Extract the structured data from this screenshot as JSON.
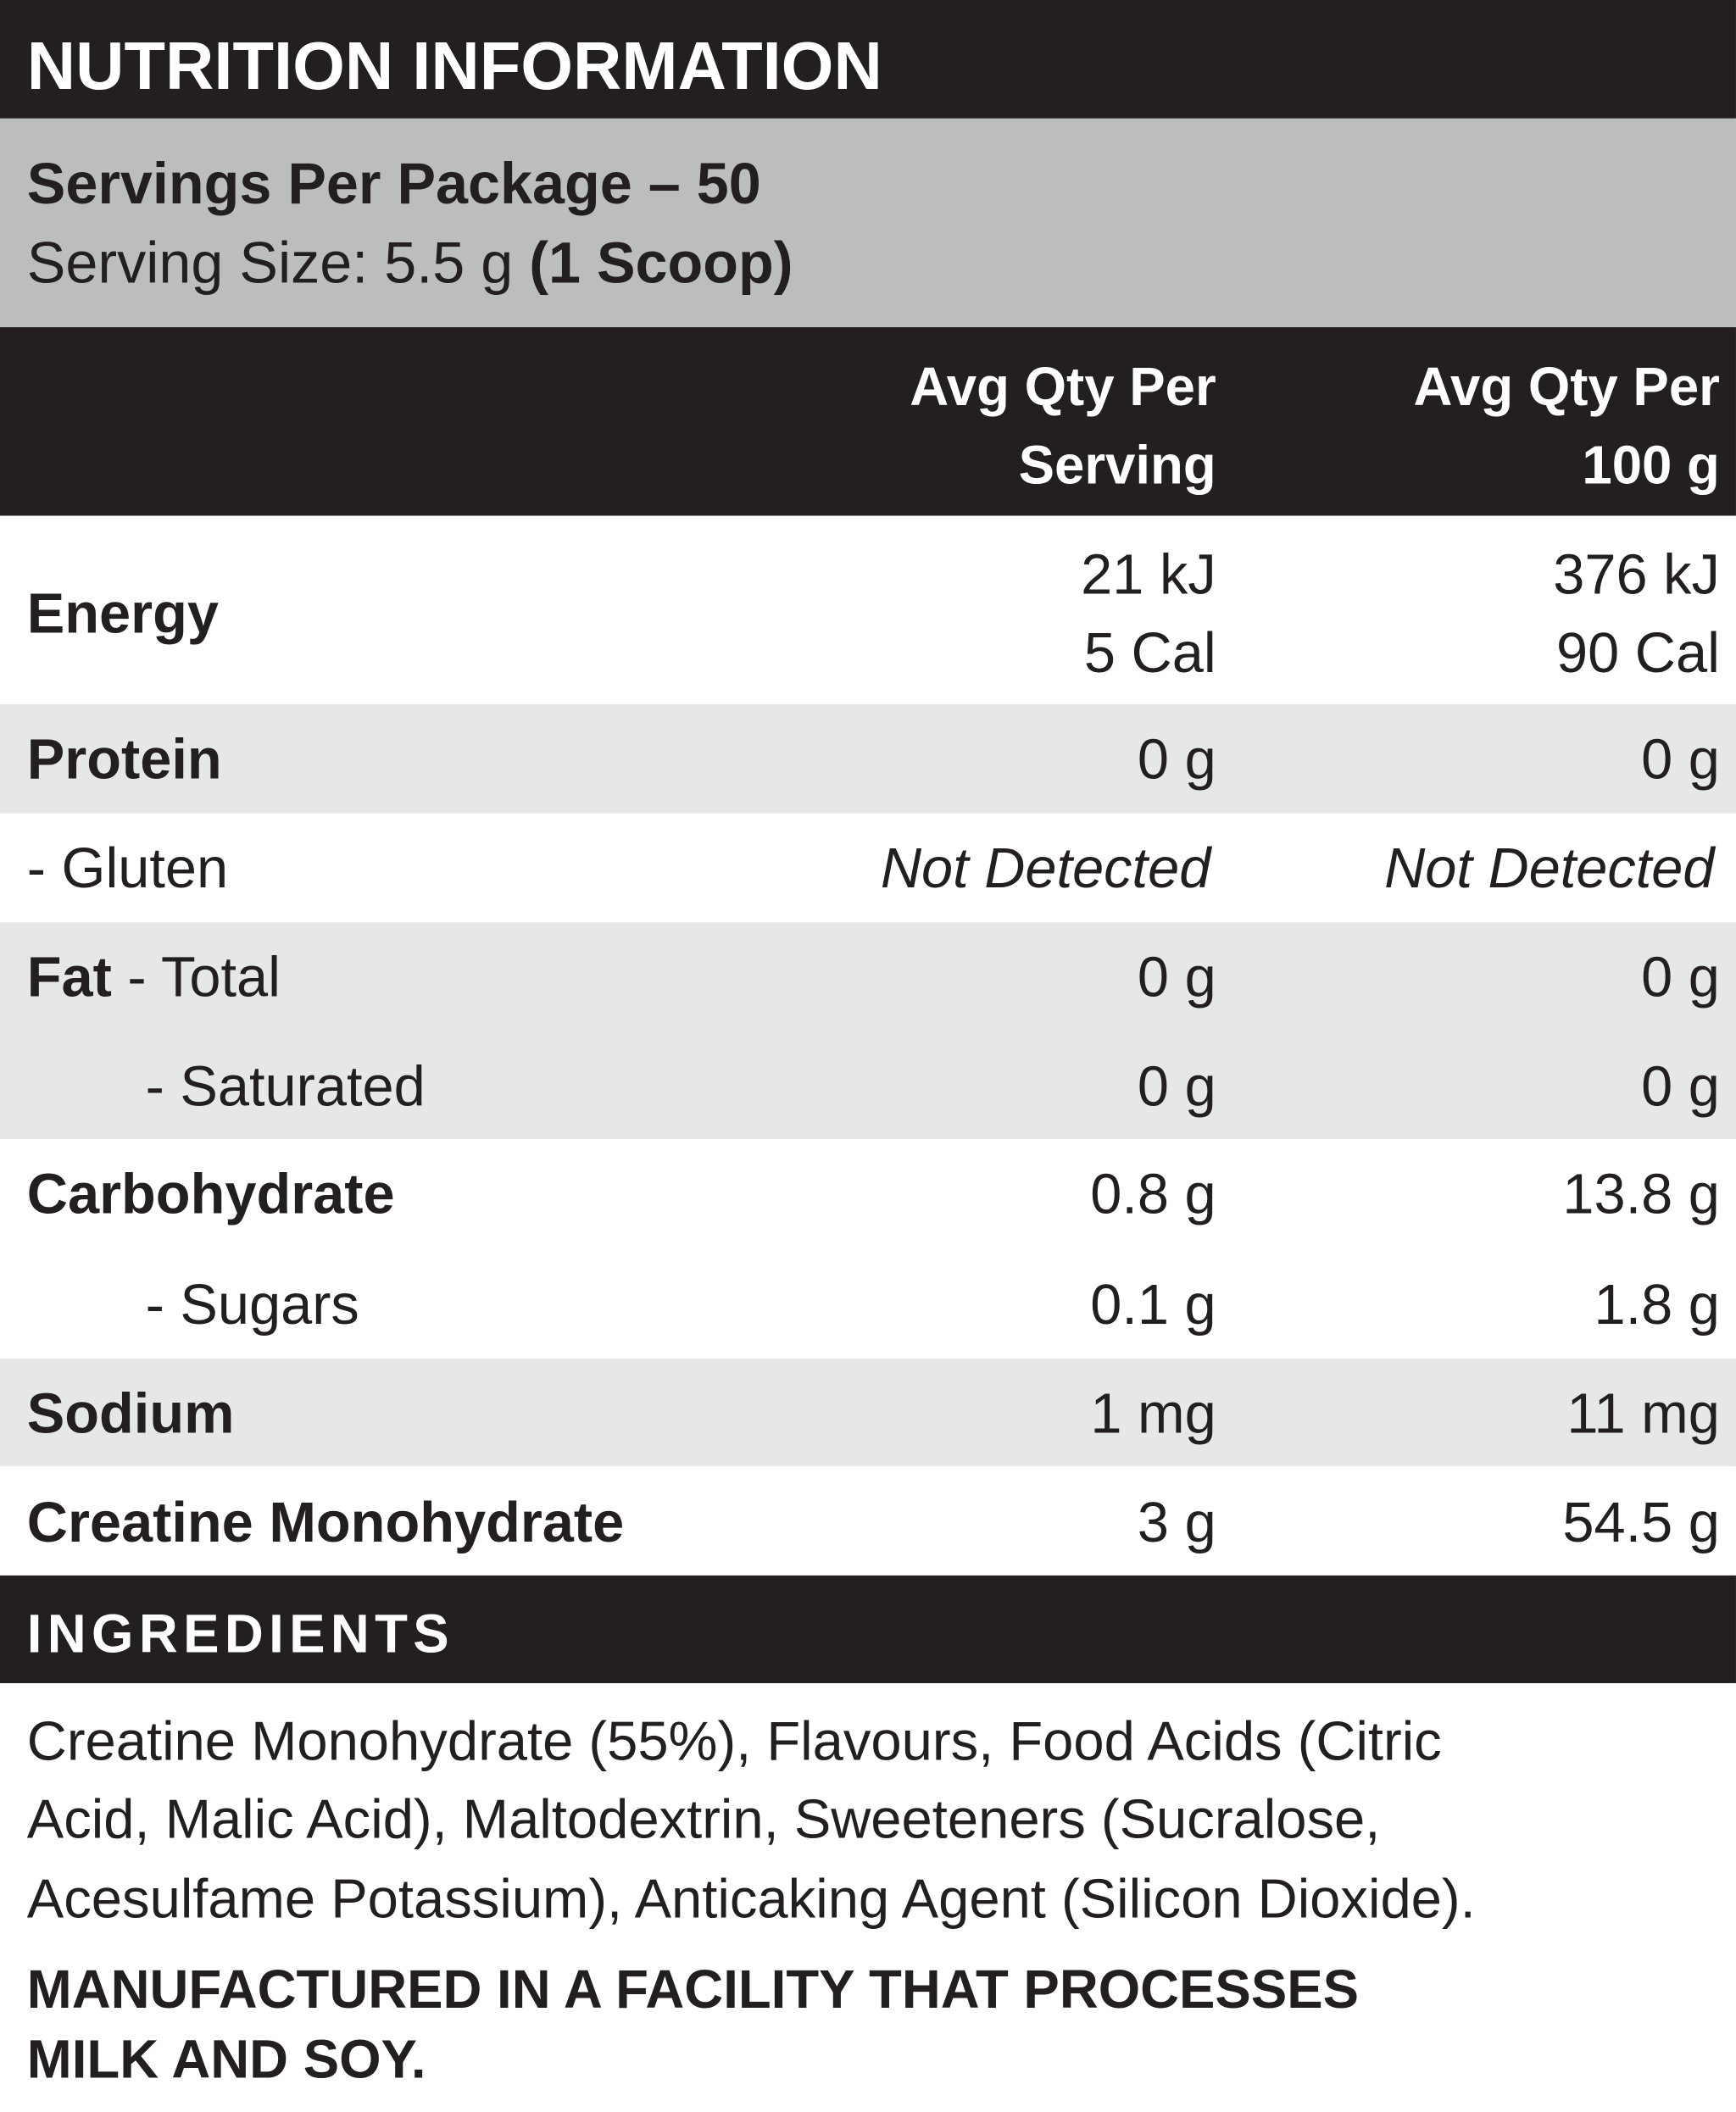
{
  "title": "NUTRITION INFORMATION",
  "servings": {
    "per_package": "Servings Per Package – 50",
    "size": "Serving Size: 5.5 g",
    "size_note": "(1 Scoop)"
  },
  "table": {
    "columns": [
      [
        "Avg Qty Per",
        "Serving"
      ],
      [
        "Avg Qty Per",
        "100 g"
      ]
    ],
    "rows": [
      {
        "label": "Energy",
        "per_serving": [
          "21 kJ",
          "5 Cal"
        ],
        "per_100g": [
          "376 kJ",
          "90 Cal"
        ]
      },
      {
        "label": "Protein",
        "per_serving": "0 g",
        "per_100g": "0 g"
      },
      {
        "label": "- Gluten",
        "per_serving": "Not Detected",
        "per_100g": "Not Detected"
      },
      {
        "label": "Fat",
        "sublabel": "- Total",
        "per_serving": "0 g",
        "per_100g": "0 g"
      },
      {
        "label": "- Saturated",
        "per_serving": "0 g",
        "per_100g": "0 g"
      },
      {
        "label": "Carbohydrate",
        "per_serving": "0.8 g",
        "per_100g": "13.8 g"
      },
      {
        "label": "- Sugars",
        "per_serving": "0.1 g",
        "per_100g": "1.8 g"
      },
      {
        "label": "Sodium",
        "per_serving": "1 mg",
        "per_100g": "11 mg"
      },
      {
        "label": "Creatine Monohydrate",
        "per_serving": "3 g",
        "per_100g": "54.5 g"
      }
    ]
  },
  "ingredients": {
    "heading": "INGREDIENTS",
    "lines": [
      "Creatine Monohydrate (55%), Flavours, Food Acids (Citric",
      "Acid, Malic Acid), Maltodextrin, Sweeteners (Sucralose,",
      "Acesulfame Potassium), Anticaking Agent (Silicon Dioxide)."
    ]
  },
  "warning": [
    "MANUFACTURED IN A FACILITY THAT PROCESSES",
    "MILK AND SOY."
  ]
}
